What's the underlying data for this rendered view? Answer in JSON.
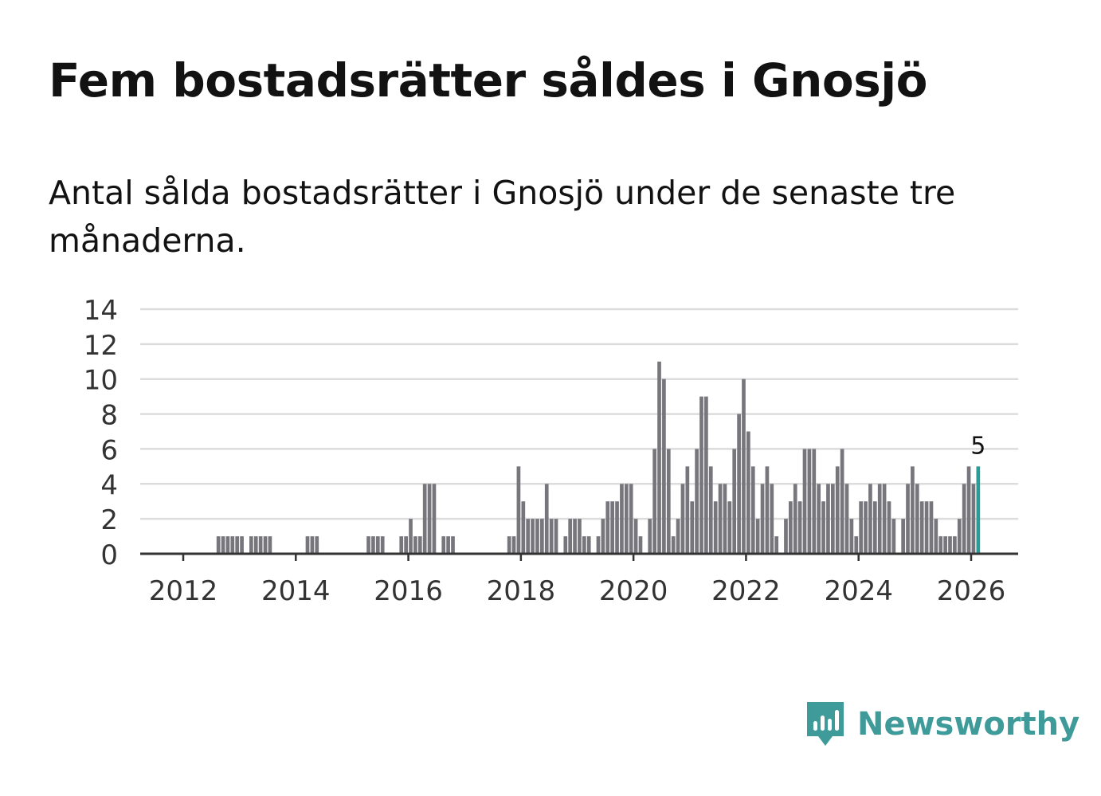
{
  "title": "Fem bostadsrätter såldes i Gnosjö",
  "subtitle": "Antal sålda bostadsrätter i Gnosjö under de senaste tre månaderna.",
  "brand": {
    "name": "Newsworthy",
    "icon": "newsworthy-logo-icon",
    "color": "#3e9b99"
  },
  "chart_data": {
    "type": "bar",
    "title": "Fem bostadsrätter såldes i Gnosjö",
    "xlabel": "",
    "ylabel": "",
    "ylim": [
      0,
      14
    ],
    "yticks": [
      0,
      2,
      4,
      6,
      8,
      10,
      12,
      14
    ],
    "xticks": [
      "2012",
      "2014",
      "2016",
      "2018",
      "2020",
      "2022",
      "2024",
      "2026"
    ],
    "grid": true,
    "bar_color": "#76767c",
    "highlight_color": "#2a9d99",
    "highlight_label": "5",
    "start": "2011-01",
    "end": "2026-02",
    "values": {
      "2012-08": 1,
      "2012-09": 1,
      "2012-10": 1,
      "2012-11": 1,
      "2012-12": 1,
      "2013-01": 1,
      "2013-03": 1,
      "2013-04": 1,
      "2013-05": 1,
      "2013-06": 1,
      "2013-07": 1,
      "2014-03": 1,
      "2014-04": 1,
      "2014-05": 1,
      "2015-04": 1,
      "2015-05": 1,
      "2015-06": 1,
      "2015-07": 1,
      "2015-11": 1,
      "2015-12": 1,
      "2016-01": 2,
      "2016-02": 1,
      "2016-03": 1,
      "2016-04": 4,
      "2016-05": 4,
      "2016-06": 4,
      "2016-08": 1,
      "2016-09": 1,
      "2016-10": 1,
      "2017-10": 1,
      "2017-11": 1,
      "2017-12": 5,
      "2018-01": 3,
      "2018-02": 2,
      "2018-03": 2,
      "2018-04": 2,
      "2018-05": 2,
      "2018-06": 4,
      "2018-07": 2,
      "2018-08": 2,
      "2018-10": 1,
      "2018-11": 2,
      "2018-12": 2,
      "2019-01": 2,
      "2019-02": 1,
      "2019-03": 1,
      "2019-05": 1,
      "2019-06": 2,
      "2019-07": 3,
      "2019-08": 3,
      "2019-09": 3,
      "2019-10": 4,
      "2019-11": 4,
      "2019-12": 4,
      "2020-01": 2,
      "2020-02": 1,
      "2020-04": 2,
      "2020-05": 6,
      "2020-06": 11,
      "2020-07": 10,
      "2020-08": 6,
      "2020-09": 1,
      "2020-10": 2,
      "2020-11": 4,
      "2020-12": 5,
      "2021-01": 3,
      "2021-02": 6,
      "2021-03": 9,
      "2021-04": 9,
      "2021-05": 5,
      "2021-06": 3,
      "2021-07": 4,
      "2021-08": 4,
      "2021-09": 3,
      "2021-10": 6,
      "2021-11": 8,
      "2021-12": 10,
      "2022-01": 7,
      "2022-02": 5,
      "2022-03": 2,
      "2022-04": 4,
      "2022-05": 5,
      "2022-06": 4,
      "2022-07": 1,
      "2022-09": 2,
      "2022-10": 3,
      "2022-11": 4,
      "2022-12": 3,
      "2023-01": 6,
      "2023-02": 6,
      "2023-03": 6,
      "2023-04": 4,
      "2023-05": 3,
      "2023-06": 4,
      "2023-07": 4,
      "2023-08": 5,
      "2023-09": 6,
      "2023-10": 4,
      "2023-11": 2,
      "2023-12": 1,
      "2024-01": 3,
      "2024-02": 3,
      "2024-03": 4,
      "2024-04": 3,
      "2024-05": 4,
      "2024-06": 4,
      "2024-07": 3,
      "2024-08": 2,
      "2024-10": 2,
      "2024-11": 4,
      "2024-12": 5,
      "2025-01": 4,
      "2025-02": 3,
      "2025-03": 3,
      "2025-04": 3,
      "2025-05": 2,
      "2025-06": 1,
      "2025-07": 1,
      "2025-08": 1,
      "2025-09": 1,
      "2025-10": 2,
      "2025-11": 4,
      "2025-12": 5,
      "2026-01": 4,
      "2026-02": 5
    }
  }
}
